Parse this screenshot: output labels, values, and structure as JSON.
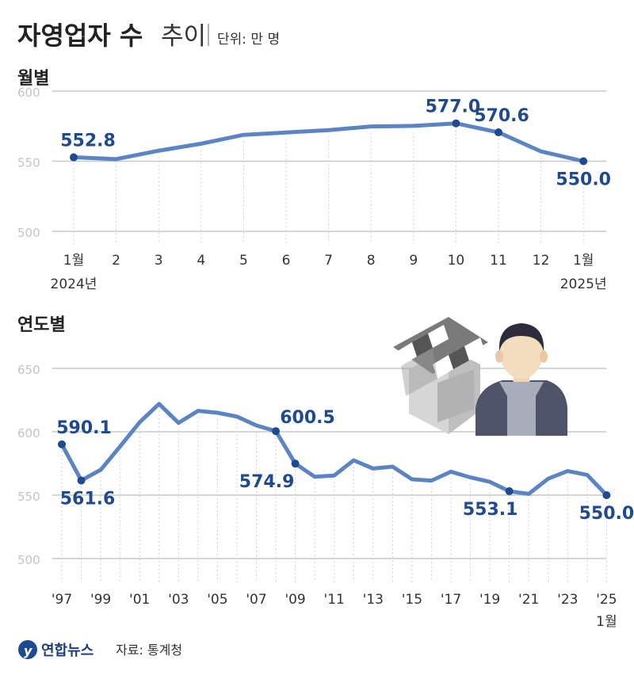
{
  "header": {
    "title_bold": "자영업자 수",
    "title_light": "추이",
    "unit": "단위: 만 명"
  },
  "footer": {
    "brand": "연합뉴스",
    "source": "자료: 통계청"
  },
  "colors": {
    "line": "#5b84c4",
    "point": "#1f4a8f",
    "label": "#1f4a8f",
    "grid": "#c8c8c8",
    "tick": "#c4c4c4",
    "title": "#222222"
  },
  "illustration": {
    "icons": [
      "store-icon",
      "shopkeeper-icon"
    ]
  },
  "chart_data": [
    {
      "type": "line",
      "title": "월별",
      "yticks": [
        "600",
        "550",
        "500"
      ],
      "ylim": [
        500,
        600
      ],
      "grid": true,
      "categories": [
        "1월",
        "2",
        "3",
        "4",
        "5",
        "6",
        "7",
        "8",
        "9",
        "10",
        "11",
        "12",
        "1월"
      ],
      "sublabels": {
        "first": "2024년",
        "last": "2025년"
      },
      "values": [
        552.8,
        551.5,
        557.5,
        562.5,
        568.8,
        570.5,
        572.2,
        574.8,
        575.2,
        577.0,
        570.6,
        557.0,
        550.0
      ],
      "annotations": [
        {
          "index": 0,
          "label": "552.8"
        },
        {
          "index": 9,
          "label": "577.0"
        },
        {
          "index": 10,
          "label": "570.6"
        },
        {
          "index": 12,
          "label": "550.0"
        }
      ]
    },
    {
      "type": "line",
      "title": "연도별",
      "yticks": [
        "650",
        "600",
        "550",
        "500"
      ],
      "ylim": [
        500,
        650
      ],
      "grid": true,
      "categories": [
        "'97",
        "'99",
        "'01",
        "'03",
        "'05",
        "'07",
        "'09",
        "'11",
        "'13",
        "'15",
        "'17",
        "'19",
        "'21",
        "'23",
        "'25"
      ],
      "last_sublabel": "1월",
      "x": [
        1997,
        1998,
        1999,
        2000,
        2001,
        2002,
        2003,
        2004,
        2005,
        2006,
        2007,
        2008,
        2009,
        2010,
        2011,
        2012,
        2013,
        2014,
        2015,
        2016,
        2017,
        2018,
        2019,
        2020,
        2021,
        2022,
        2023,
        2024,
        2025
      ],
      "values": [
        590.1,
        561.6,
        570.0,
        588.5,
        607.5,
        622.0,
        607.0,
        616.5,
        615.0,
        612.0,
        605.0,
        600.5,
        574.9,
        564.5,
        565.5,
        577.5,
        571.0,
        572.5,
        562.5,
        561.5,
        568.5,
        564.0,
        560.5,
        553.1,
        551.0,
        563.0,
        569.0,
        566.0,
        550.0
      ],
      "annotations": [
        {
          "index": 0,
          "label": "590.1"
        },
        {
          "index": 1,
          "label": "561.6"
        },
        {
          "index": 11,
          "label": "600.5"
        },
        {
          "index": 12,
          "label": "574.9"
        },
        {
          "index": 23,
          "label": "553.1"
        },
        {
          "index": 28,
          "label": "550.0"
        }
      ]
    }
  ]
}
